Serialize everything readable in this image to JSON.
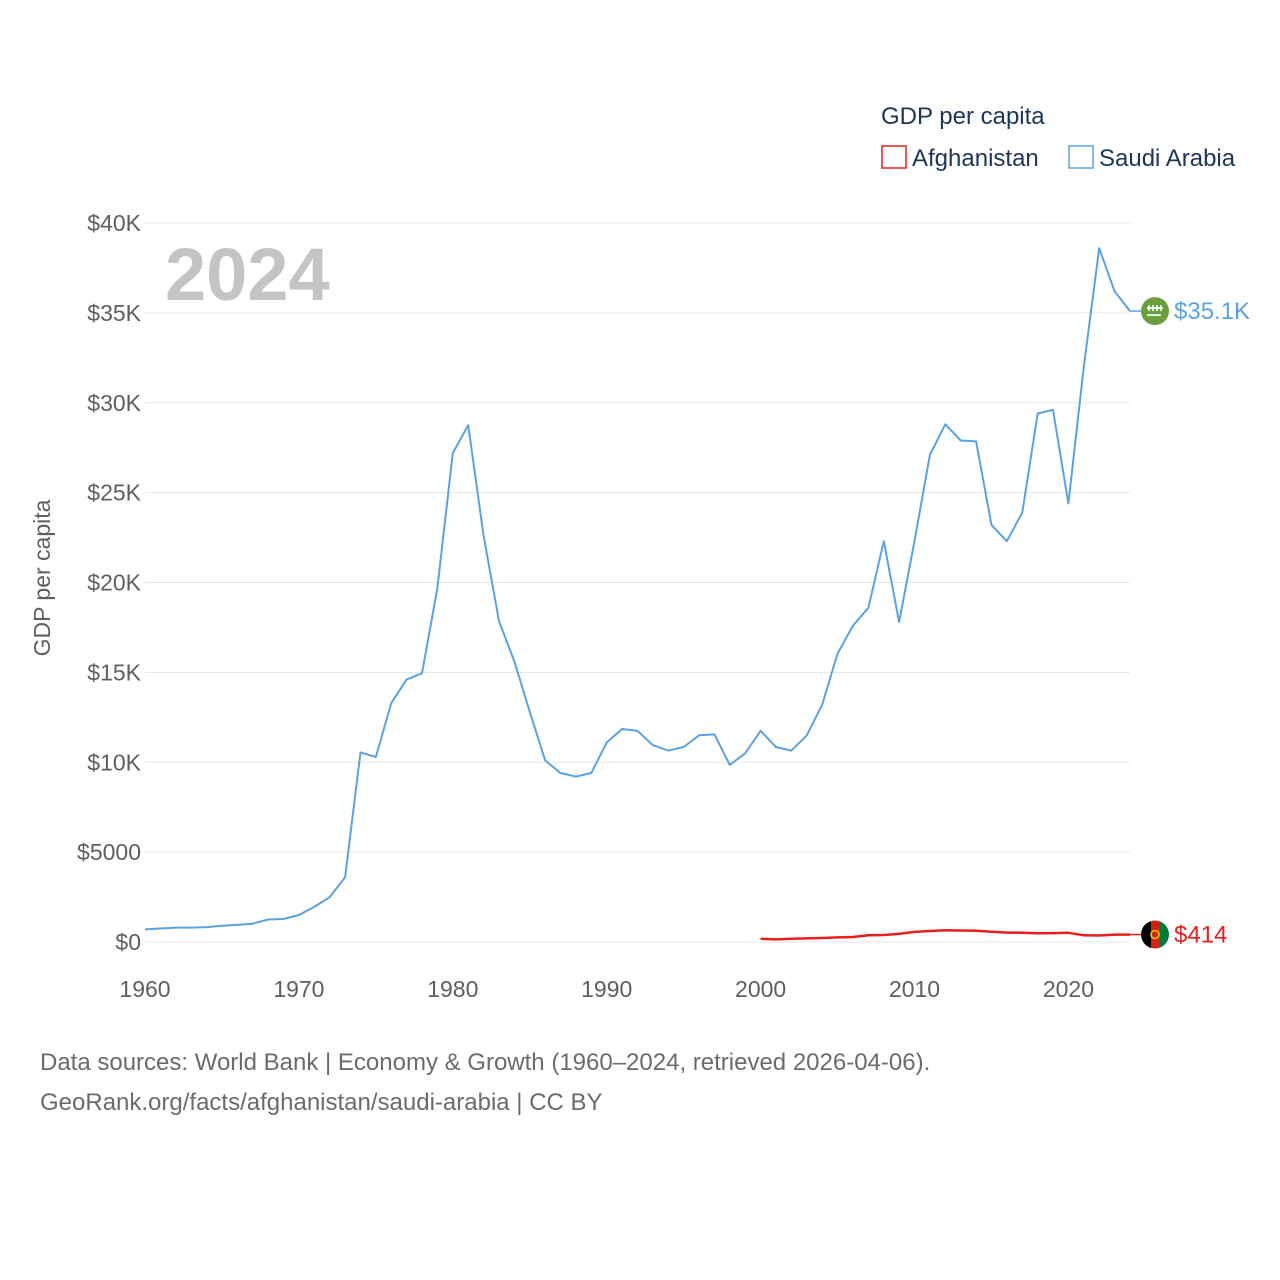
{
  "chart_data": {
    "type": "line",
    "year_label": "2024",
    "ylabel": "GDP per capita",
    "xlabel": "",
    "xlim": [
      1960,
      2024
    ],
    "ylim": [
      0,
      40000
    ],
    "x_ticks": [
      1960,
      1970,
      1980,
      1990,
      2000,
      2010,
      2020
    ],
    "x_tick_labels": [
      "1960",
      "1970",
      "1980",
      "1990",
      "2000",
      "2010",
      "2020"
    ],
    "y_ticks": [
      0,
      5000,
      10000,
      15000,
      20000,
      25000,
      30000,
      35000,
      40000
    ],
    "y_tick_labels": [
      "$0",
      "$5000",
      "$10K",
      "$15K",
      "$20K",
      "$25K",
      "$30K",
      "$35K",
      "$40K"
    ],
    "legend": {
      "title": "GDP per capita",
      "position": "top-right",
      "items": [
        "Afghanistan",
        "Saudi Arabia"
      ]
    },
    "series": [
      {
        "name": "Afghanistan",
        "color": "#e8201c",
        "end_label": "$414",
        "flag": "afghanistan-flag",
        "x": [
          2000,
          2001,
          2002,
          2003,
          2004,
          2005,
          2006,
          2007,
          2008,
          2009,
          2010,
          2011,
          2012,
          2013,
          2014,
          2015,
          2016,
          2017,
          2018,
          2019,
          2020,
          2021,
          2022,
          2023,
          2024
        ],
        "y": [
          180,
          145,
          180,
          200,
          220,
          255,
          280,
          380,
          390,
          450,
          560,
          610,
          650,
          640,
          625,
          565,
          525,
          520,
          490,
          495,
          510,
          370,
          360,
          414,
          414
        ]
      },
      {
        "name": "Saudi Arabia",
        "color": "#5aa3e0",
        "end_label": "$35.1K",
        "flag": "saudi-arabia-flag",
        "x": [
          1960,
          1961,
          1962,
          1963,
          1964,
          1965,
          1966,
          1967,
          1968,
          1969,
          1970,
          1971,
          1972,
          1973,
          1974,
          1975,
          1976,
          1977,
          1978,
          1979,
          1980,
          1981,
          1982,
          1983,
          1984,
          1985,
          1986,
          1987,
          1988,
          1989,
          1990,
          1991,
          1992,
          1993,
          1994,
          1995,
          1996,
          1997,
          1998,
          1999,
          2000,
          2001,
          2002,
          2003,
          2004,
          2005,
          2006,
          2007,
          2008,
          2009,
          2010,
          2011,
          2012,
          2013,
          2014,
          2015,
          2016,
          2017,
          2018,
          2019,
          2020,
          2021,
          2022,
          2023,
          2024
        ],
        "y": [
          700,
          750,
          800,
          800,
          830,
          900,
          950,
          1020,
          1250,
          1280,
          1500,
          1950,
          2500,
          3600,
          10550,
          10300,
          13300,
          14600,
          14950,
          19700,
          27200,
          28750,
          22600,
          17850,
          15600,
          12800,
          10100,
          9400,
          9200,
          9400,
          11100,
          11850,
          11750,
          10950,
          10650,
          10850,
          11500,
          11550,
          9850,
          10500,
          11750,
          10850,
          10650,
          11500,
          13200,
          16050,
          17600,
          18600,
          22300,
          17800,
          22300,
          27100,
          28800,
          27900,
          27850,
          23200,
          22300,
          23900,
          29400,
          29600,
          24400,
          32000,
          38600,
          36200,
          35100
        ]
      }
    ]
  },
  "footer": {
    "line1": "Data sources: World Bank | Economy & Growth (1960–2024, retrieved 2026-04-06).",
    "line2": "GeoRank.org/facts/afghanistan/saudi-arabia | CC BY"
  },
  "colors": {
    "grid": "#e6e6e6",
    "afghanistan_flag_left": "#000000",
    "afghanistan_flag_middle": "#d32011",
    "afghanistan_flag_right": "#007a36",
    "saudi_flag": "#6a9e3e"
  }
}
